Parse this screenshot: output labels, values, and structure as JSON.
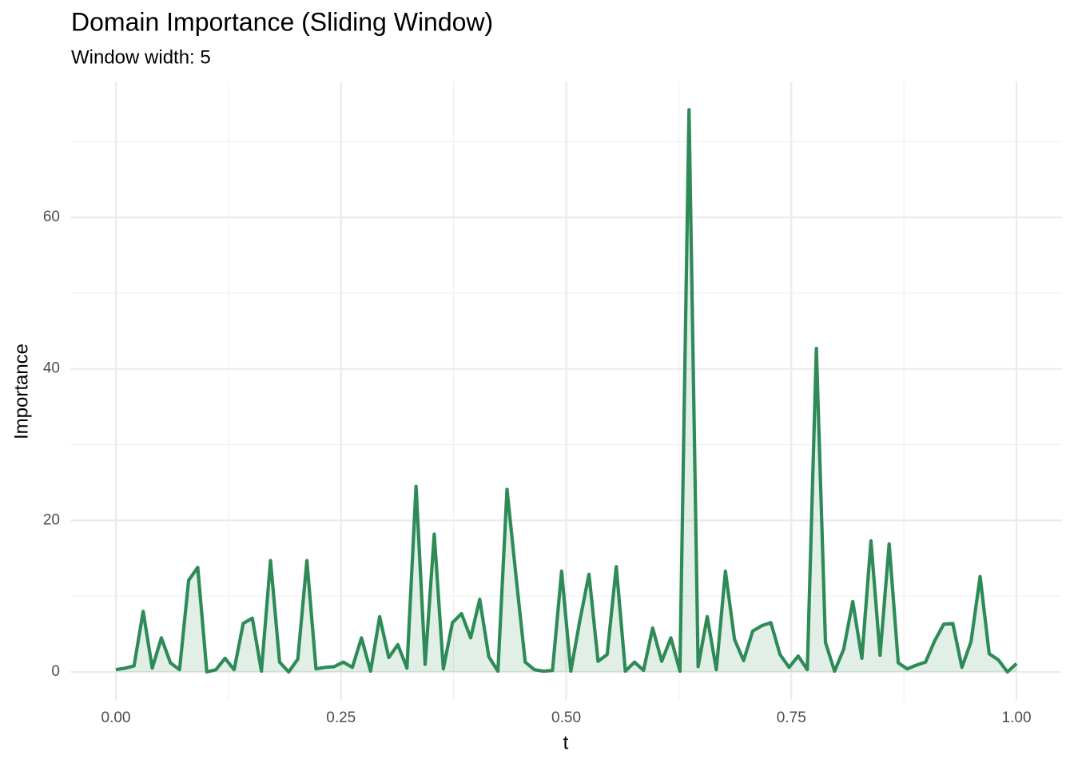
{
  "chart_data": {
    "type": "area-line",
    "title": "Domain Importance (Sliding Window)",
    "subtitle": "Window width: 5",
    "x_label": "t",
    "y_label": "Importance",
    "color": "#2e8b57",
    "grid": true,
    "xlim": [
      -0.05,
      1.05
    ],
    "ylim": [
      -3.71,
      77.9
    ],
    "xticks": [
      {
        "value": 0,
        "label": "0.00"
      },
      {
        "value": 0.25,
        "label": "0.25"
      },
      {
        "value": 0.5,
        "label": "0.50"
      },
      {
        "value": 0.75,
        "label": "0.75"
      },
      {
        "value": 1,
        "label": "1.00"
      }
    ],
    "yticks": [
      0,
      20,
      40,
      60
    ],
    "x_minor_ticks": [
      0.125,
      0.375,
      0.625,
      0.875
    ],
    "y_minor_ticks": [
      10,
      30,
      50,
      70
    ],
    "x": [
      0,
      0.0101,
      0.0202,
      0.0303,
      0.0404,
      0.0505,
      0.0606,
      0.0707,
      0.0808,
      0.0909,
      0.101,
      0.1111,
      0.1212,
      0.1313,
      0.1414,
      0.1515,
      0.1616,
      0.1717,
      0.1818,
      0.1919,
      0.202,
      0.2121,
      0.2222,
      0.2323,
      0.2424,
      0.2525,
      0.2626,
      0.2727,
      0.2828,
      0.2929,
      0.303,
      0.3131,
      0.3232,
      0.3333,
      0.3434,
      0.3535,
      0.3636,
      0.3737,
      0.3838,
      0.3939,
      0.404,
      0.4141,
      0.4242,
      0.4343,
      0.4444,
      0.4545,
      0.4646,
      0.4747,
      0.4848,
      0.4949,
      0.5051,
      0.5152,
      0.5253,
      0.5354,
      0.5455,
      0.5556,
      0.5657,
      0.5758,
      0.5859,
      0.596,
      0.6061,
      0.6162,
      0.6263,
      0.6364,
      0.6465,
      0.6566,
      0.6667,
      0.6768,
      0.6869,
      0.697,
      0.7071,
      0.7172,
      0.7273,
      0.7374,
      0.7475,
      0.7576,
      0.7677,
      0.7778,
      0.7879,
      0.798,
      0.8081,
      0.8182,
      0.8283,
      0.8384,
      0.8485,
      0.8586,
      0.8687,
      0.8788,
      0.8889,
      0.899,
      0.9091,
      0.9192,
      0.9293,
      0.9394,
      0.9495,
      0.9596,
      0.9697,
      0.9798,
      0.9899,
      1
    ],
    "values": [
      0.3,
      0.5,
      0.8,
      8.0,
      0.5,
      4.5,
      1.2,
      0.3,
      12.1,
      13.8,
      0.0,
      0.3,
      1.8,
      0.3,
      6.4,
      7.1,
      0.1,
      14.7,
      1.3,
      0.0,
      1.7,
      14.7,
      0.4,
      0.6,
      0.7,
      1.3,
      0.6,
      4.5,
      0.1,
      7.3,
      1.9,
      3.6,
      0.5,
      24.5,
      1.0,
      18.2,
      0.4,
      6.5,
      7.7,
      4.5,
      9.6,
      2.0,
      0.1,
      24.1,
      12.5,
      1.3,
      0.3,
      0.1,
      0.2,
      13.3,
      0.1,
      6.8,
      12.9,
      1.4,
      2.3,
      13.9,
      0.1,
      1.3,
      0.2,
      5.8,
      1.4,
      4.5,
      0.1,
      74.2,
      0.7,
      7.3,
      0.3,
      13.3,
      4.3,
      1.5,
      5.4,
      6.1,
      6.5,
      2.3,
      0.6,
      2.1,
      0.3,
      42.7,
      3.9,
      0.1,
      3.0,
      9.3,
      1.8,
      17.3,
      2.2,
      16.9,
      1.2,
      0.4,
      0.9,
      1.3,
      4.1,
      6.3,
      6.4,
      0.6,
      4.0,
      12.6,
      2.4,
      1.6,
      0.0,
      1.1
    ]
  }
}
